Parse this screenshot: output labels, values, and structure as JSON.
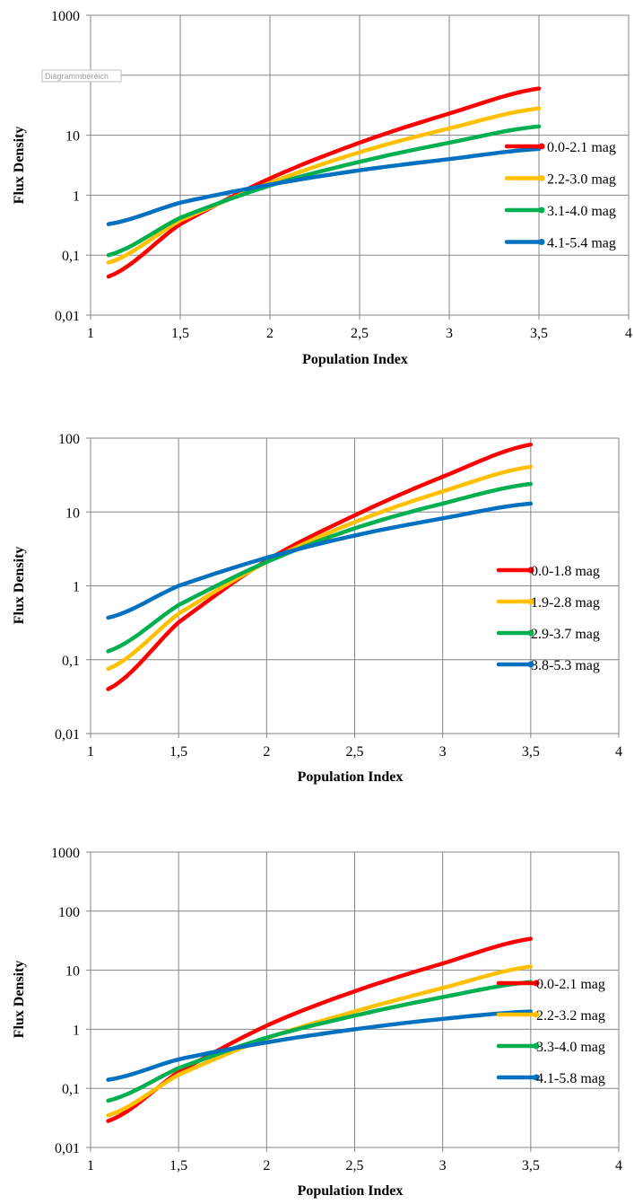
{
  "chart_data": [
    {
      "type": "line",
      "title": "",
      "xlabel": "Population Index",
      "ylabel": "Flux Density",
      "xlim": [
        1,
        4
      ],
      "ylim": [
        0.01,
        1000
      ],
      "yscale": "log",
      "x_ticks": [
        "1",
        "1,5",
        "2",
        "2,5",
        "3",
        "3,5",
        "4"
      ],
      "y_ticks": [
        "0,01",
        "0,1",
        "1",
        "10",
        "100",
        "1000"
      ],
      "grid": true,
      "legend_position": "right",
      "overlay_tag": "Diagrammbereich",
      "x": [
        1.1,
        1.5,
        2.0,
        2.5,
        3.0,
        3.5
      ],
      "series": [
        {
          "name": "0.0-2.1 mag",
          "color": "#ff0000",
          "values": [
            0.044,
            0.33,
            1.9,
            7.5,
            23,
            60
          ]
        },
        {
          "name": "2.2-3.0 mag",
          "color": "#ffc000",
          "values": [
            0.075,
            0.38,
            1.6,
            5.2,
            13,
            28
          ]
        },
        {
          "name": "3.1-4.0 mag",
          "color": "#00b050",
          "values": [
            0.1,
            0.42,
            1.45,
            3.6,
            7.5,
            14
          ]
        },
        {
          "name": "4.1-5.4 mag",
          "color": "#0070c0",
          "values": [
            0.33,
            0.75,
            1.5,
            2.6,
            4.0,
            5.9
          ]
        }
      ]
    },
    {
      "type": "line",
      "title": "",
      "xlabel": "Population Index",
      "ylabel": "Flux Density",
      "xlim": [
        1,
        4
      ],
      "ylim": [
        0.01,
        100
      ],
      "yscale": "log",
      "x_ticks": [
        "1",
        "1,5",
        "2",
        "2,5",
        "3",
        "3,5",
        "4"
      ],
      "y_ticks": [
        "0,01",
        "0,1",
        "1",
        "10",
        "100"
      ],
      "grid": true,
      "legend_position": "right",
      "x": [
        1.1,
        1.5,
        2.0,
        2.5,
        3.0,
        3.5
      ],
      "series": [
        {
          "name": "0.0-1.8 mag",
          "color": "#ff0000",
          "values": [
            0.04,
            0.32,
            2.2,
            9.0,
            30,
            82
          ]
        },
        {
          "name": "1.9-2.8 mag",
          "color": "#ffc000",
          "values": [
            0.075,
            0.42,
            2.1,
            7.3,
            19,
            41
          ]
        },
        {
          "name": "2.9-3.7 mag",
          "color": "#00b050",
          "values": [
            0.13,
            0.55,
            2.1,
            6.0,
            13,
            24
          ]
        },
        {
          "name": "3.8-5.3 mag",
          "color": "#0070c0",
          "values": [
            0.37,
            1.0,
            2.4,
            4.8,
            8.2,
            13
          ]
        }
      ]
    },
    {
      "type": "line",
      "title": "",
      "xlabel": "Population Index",
      "ylabel": "Flux Density",
      "xlim": [
        1,
        4
      ],
      "ylim": [
        0.01,
        1000
      ],
      "yscale": "log",
      "x_ticks": [
        "1",
        "1,5",
        "2",
        "2,5",
        "3",
        "3,5",
        "4"
      ],
      "y_ticks": [
        "0,01",
        "0,1",
        "1",
        "10",
        "100",
        "1000"
      ],
      "grid": true,
      "legend_position": "right",
      "x": [
        1.1,
        1.5,
        2.0,
        2.5,
        3.0,
        3.5
      ],
      "series": [
        {
          "name": "0.0-2.1 mag",
          "color": "#ff0000",
          "values": [
            0.028,
            0.19,
            1.15,
            4.4,
            13,
            34
          ]
        },
        {
          "name": "2.2-3.2 mag",
          "color": "#ffc000",
          "values": [
            0.035,
            0.17,
            0.7,
            2.0,
            5.0,
            11.5
          ]
        },
        {
          "name": "3.3-4.0 mag",
          "color": "#00b050",
          "values": [
            0.062,
            0.22,
            0.72,
            1.7,
            3.5,
            6.3
          ]
        },
        {
          "name": "4.1-5.8 mag",
          "color": "#0070c0",
          "values": [
            0.14,
            0.31,
            0.6,
            1.0,
            1.5,
            2.0
          ]
        }
      ]
    }
  ]
}
